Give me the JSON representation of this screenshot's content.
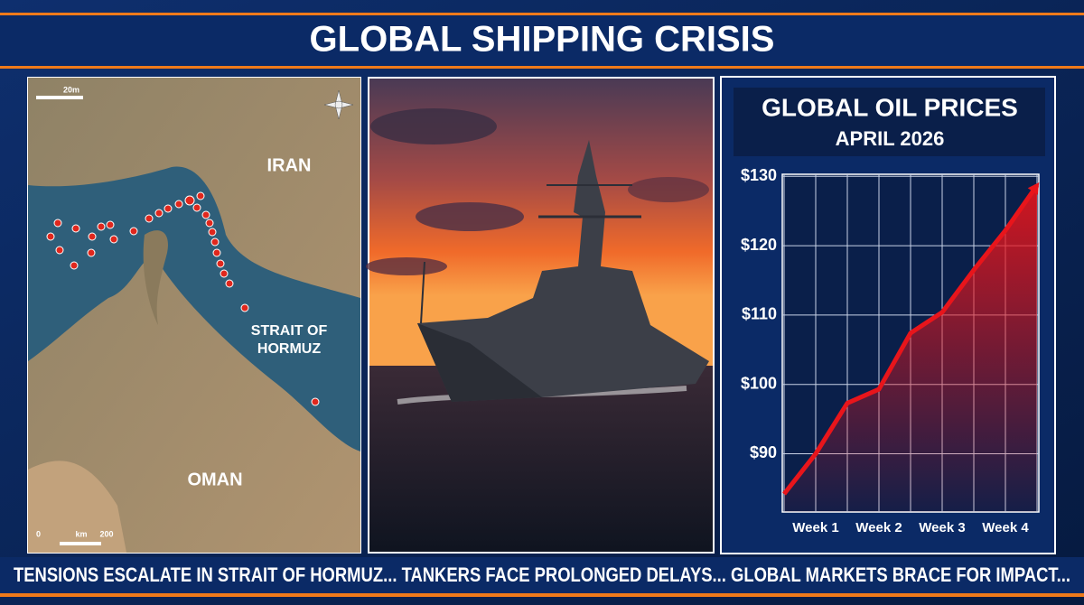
{
  "header": {
    "title": "GLOBAL SHIPPING CRISIS"
  },
  "map": {
    "labels": {
      "iran": "IRAN",
      "strait": "STRAIT OF",
      "strait2": "HORMUZ",
      "oman": "OMAN"
    },
    "scale_top": "20m",
    "scale_left": "0",
    "scale_mid": "km",
    "scale_right": "200"
  },
  "chart_data": {
    "type": "line",
    "title": "GLOBAL OIL PRICES",
    "subtitle": "APRIL 2026",
    "categories": [
      null,
      "Week 1",
      null,
      "Week 2",
      null,
      "Week 3",
      null,
      "Week 4",
      null
    ],
    "values": [
      84.2,
      90,
      97.3,
      99.3,
      107.4,
      110.4,
      116.5,
      122.2,
      128.7
    ],
    "color": "#e8151b",
    "ylim": [
      81.6,
      130.3
    ],
    "yticks": [
      {
        "value": 90,
        "label": "$90"
      },
      {
        "value": 100,
        "label": "$100"
      },
      {
        "value": 110,
        "label": "$110"
      },
      {
        "value": 120,
        "label": "$120"
      },
      {
        "value": 130,
        "label": "$130"
      }
    ],
    "grid": true
  },
  "ticker": {
    "text": "TENSIONS ESCALATE IN STRAIT OF HORMUZ... TANKERS FACE PROLONGED DELAYS... GLOBAL MARKETS BRACE FOR IMPACT..."
  }
}
